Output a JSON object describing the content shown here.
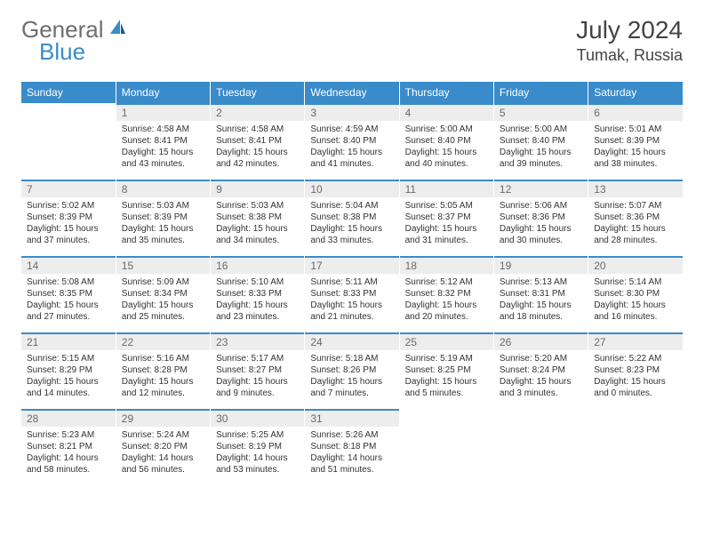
{
  "brand": {
    "part1": "General",
    "part2": "Blue"
  },
  "title": {
    "month": "July 2024",
    "location": "Tumak, Russia"
  },
  "colors": {
    "header_bg": "#3a8bc9",
    "header_text": "#ffffff",
    "daynum_bg": "#ededed",
    "daynum_border": "#3a8bc9",
    "text": "#333333"
  },
  "dayNames": [
    "Sunday",
    "Monday",
    "Tuesday",
    "Wednesday",
    "Thursday",
    "Friday",
    "Saturday"
  ],
  "weeks": [
    [
      null,
      {
        "n": "1",
        "sr": "4:58 AM",
        "ss": "8:41 PM",
        "dl": "15 hours and 43 minutes."
      },
      {
        "n": "2",
        "sr": "4:58 AM",
        "ss": "8:41 PM",
        "dl": "15 hours and 42 minutes."
      },
      {
        "n": "3",
        "sr": "4:59 AM",
        "ss": "8:40 PM",
        "dl": "15 hours and 41 minutes."
      },
      {
        "n": "4",
        "sr": "5:00 AM",
        "ss": "8:40 PM",
        "dl": "15 hours and 40 minutes."
      },
      {
        "n": "5",
        "sr": "5:00 AM",
        "ss": "8:40 PM",
        "dl": "15 hours and 39 minutes."
      },
      {
        "n": "6",
        "sr": "5:01 AM",
        "ss": "8:39 PM",
        "dl": "15 hours and 38 minutes."
      }
    ],
    [
      {
        "n": "7",
        "sr": "5:02 AM",
        "ss": "8:39 PM",
        "dl": "15 hours and 37 minutes."
      },
      {
        "n": "8",
        "sr": "5:03 AM",
        "ss": "8:39 PM",
        "dl": "15 hours and 35 minutes."
      },
      {
        "n": "9",
        "sr": "5:03 AM",
        "ss": "8:38 PM",
        "dl": "15 hours and 34 minutes."
      },
      {
        "n": "10",
        "sr": "5:04 AM",
        "ss": "8:38 PM",
        "dl": "15 hours and 33 minutes."
      },
      {
        "n": "11",
        "sr": "5:05 AM",
        "ss": "8:37 PM",
        "dl": "15 hours and 31 minutes."
      },
      {
        "n": "12",
        "sr": "5:06 AM",
        "ss": "8:36 PM",
        "dl": "15 hours and 30 minutes."
      },
      {
        "n": "13",
        "sr": "5:07 AM",
        "ss": "8:36 PM",
        "dl": "15 hours and 28 minutes."
      }
    ],
    [
      {
        "n": "14",
        "sr": "5:08 AM",
        "ss": "8:35 PM",
        "dl": "15 hours and 27 minutes."
      },
      {
        "n": "15",
        "sr": "5:09 AM",
        "ss": "8:34 PM",
        "dl": "15 hours and 25 minutes."
      },
      {
        "n": "16",
        "sr": "5:10 AM",
        "ss": "8:33 PM",
        "dl": "15 hours and 23 minutes."
      },
      {
        "n": "17",
        "sr": "5:11 AM",
        "ss": "8:33 PM",
        "dl": "15 hours and 21 minutes."
      },
      {
        "n": "18",
        "sr": "5:12 AM",
        "ss": "8:32 PM",
        "dl": "15 hours and 20 minutes."
      },
      {
        "n": "19",
        "sr": "5:13 AM",
        "ss": "8:31 PM",
        "dl": "15 hours and 18 minutes."
      },
      {
        "n": "20",
        "sr": "5:14 AM",
        "ss": "8:30 PM",
        "dl": "15 hours and 16 minutes."
      }
    ],
    [
      {
        "n": "21",
        "sr": "5:15 AM",
        "ss": "8:29 PM",
        "dl": "15 hours and 14 minutes."
      },
      {
        "n": "22",
        "sr": "5:16 AM",
        "ss": "8:28 PM",
        "dl": "15 hours and 12 minutes."
      },
      {
        "n": "23",
        "sr": "5:17 AM",
        "ss": "8:27 PM",
        "dl": "15 hours and 9 minutes."
      },
      {
        "n": "24",
        "sr": "5:18 AM",
        "ss": "8:26 PM",
        "dl": "15 hours and 7 minutes."
      },
      {
        "n": "25",
        "sr": "5:19 AM",
        "ss": "8:25 PM",
        "dl": "15 hours and 5 minutes."
      },
      {
        "n": "26",
        "sr": "5:20 AM",
        "ss": "8:24 PM",
        "dl": "15 hours and 3 minutes."
      },
      {
        "n": "27",
        "sr": "5:22 AM",
        "ss": "8:23 PM",
        "dl": "15 hours and 0 minutes."
      }
    ],
    [
      {
        "n": "28",
        "sr": "5:23 AM",
        "ss": "8:21 PM",
        "dl": "14 hours and 58 minutes."
      },
      {
        "n": "29",
        "sr": "5:24 AM",
        "ss": "8:20 PM",
        "dl": "14 hours and 56 minutes."
      },
      {
        "n": "30",
        "sr": "5:25 AM",
        "ss": "8:19 PM",
        "dl": "14 hours and 53 minutes."
      },
      {
        "n": "31",
        "sr": "5:26 AM",
        "ss": "8:18 PM",
        "dl": "14 hours and 51 minutes."
      },
      null,
      null,
      null
    ]
  ],
  "labels": {
    "sunrise": "Sunrise:",
    "sunset": "Sunset:",
    "daylight": "Daylight:"
  }
}
